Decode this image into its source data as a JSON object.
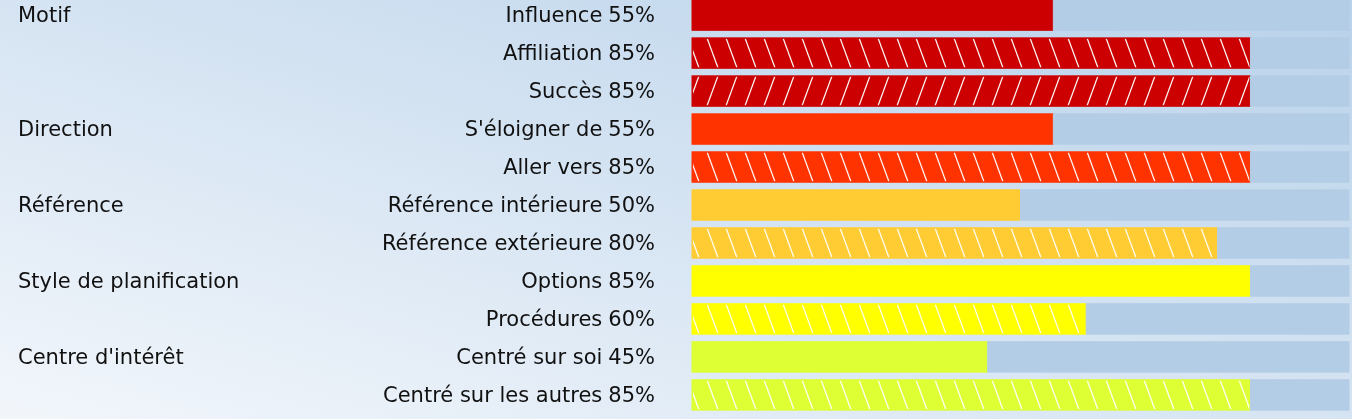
{
  "chart_data": {
    "type": "bar",
    "orientation": "horizontal",
    "categories": [
      "Influence",
      "Affiliation",
      "Succès",
      "S'éloigner de",
      "Aller vers",
      "Référence intérieure",
      "Référence extérieure",
      "Options",
      "Procédures",
      "Centré sur soi",
      "Centré sur les autres"
    ],
    "stacked": true,
    "series": [
      {
        "values": [
          55,
          85,
          85,
          55,
          85,
          50,
          80,
          85,
          60,
          45,
          85
        ],
        "value_labels": [
          "55%",
          "85%",
          "85%",
          "55%",
          "85%",
          "50%",
          "80%",
          "85%",
          "60%",
          "45%",
          "85%"
        ],
        "colors": [
          "#cc0000",
          "#cc0000",
          "#cc0000",
          "#ff3300",
          "#ff3300",
          "#ffcc33",
          "#ffcc33",
          "#ffff00",
          "#ffff00",
          "#ddff33",
          "#ddff33"
        ]
      },
      {
        "color": "#b4cde6",
        "values": [
          45,
          15,
          15,
          45,
          15,
          50,
          20,
          15,
          40,
          55,
          15
        ]
      }
    ],
    "annotations": [
      "Motif",
      "Direction",
      "Référence",
      "Style de planification",
      "Centre d'intérêt"
    ]
  }
}
